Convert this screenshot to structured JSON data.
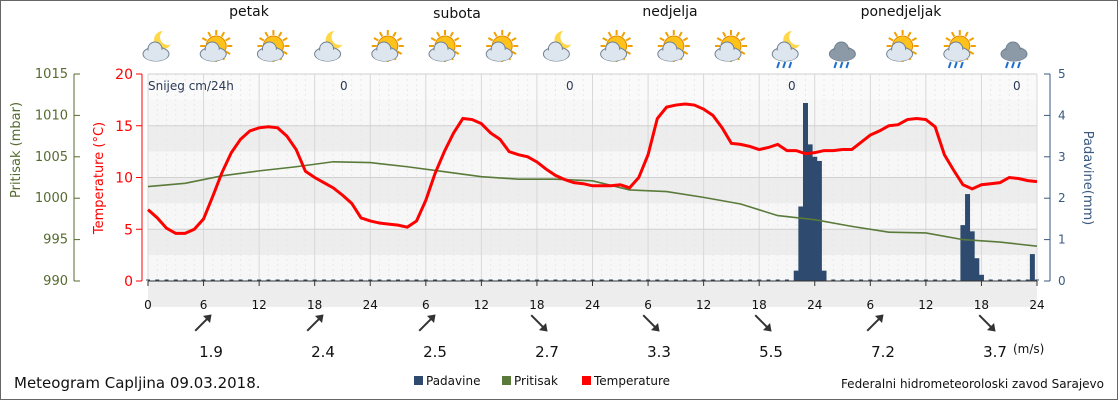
{
  "days": [
    "petak",
    "subota",
    "nedjelja",
    "ponedjeljak"
  ],
  "weather_icons": [
    "moon-cloud-icon",
    "sun-cloud-icon",
    "sun-cloud-icon",
    "moon-cloud-icon",
    "sun-cloud-icon",
    "sun-cloud-icon",
    "sun-cloud-icon",
    "moon-cloud-icon",
    "sun-cloud-icon",
    "sun-cloud-icon",
    "sun-cloud-icon",
    "moon-rain-icon",
    "cloud-rain-icon",
    "sun-cloud-icon",
    "sun-rain-icon",
    "cloud-rain-icon"
  ],
  "snow": {
    "label": "Snijeg cm/24h",
    "values": [
      "0",
      "0",
      "0",
      "0"
    ]
  },
  "wind": {
    "speeds": [
      "1.9",
      "2.4",
      "2.5",
      "2.7",
      "3.3",
      "5.5",
      "7.2",
      "3.7"
    ],
    "unit": "(m/s)",
    "directions_deg": [
      225,
      225,
      225,
      315,
      315,
      315,
      225,
      315
    ]
  },
  "footer": {
    "title": "Meteogram Capljina 09.03.2018.",
    "source": "Federalni hidrometeoroloski zavod Sarajevo",
    "legend": [
      "Padavine",
      "Pritisak",
      "Temperature"
    ]
  },
  "colors": {
    "temperature": "#ff0000",
    "pressure": "#5a7a3a",
    "precip": "#2e4a6e",
    "pressure_axis": "#556b2f",
    "precip_axis": "#3a5a80"
  },
  "chart_data": {
    "type": "line",
    "x_tick_labels": [
      "0",
      "6",
      "12",
      "18",
      "24",
      "6",
      "12",
      "18",
      "24",
      "6",
      "12",
      "18",
      "24",
      "6",
      "12",
      "18",
      "24"
    ],
    "x_range_hours": [
      0,
      96
    ],
    "axes": {
      "pressure": {
        "label": "Pritisak (mbar)",
        "range": [
          990,
          1015
        ],
        "ticks": [
          "1015",
          "1010",
          "1005",
          "1000",
          "995",
          "990"
        ]
      },
      "temperature": {
        "label": "Temperature (°C)",
        "range": [
          0,
          20
        ],
        "ticks": [
          "20",
          "15",
          "10",
          "5",
          "0"
        ]
      },
      "precip": {
        "label": "Padavine(mm)",
        "range": [
          0,
          5
        ],
        "ticks": [
          "5",
          "4",
          "3",
          "2",
          "1",
          "0"
        ]
      }
    },
    "series": [
      {
        "name": "Temperature",
        "x": [
          0,
          1,
          2,
          3,
          4,
          5,
          6,
          7,
          8,
          9,
          10,
          11,
          12,
          13,
          14,
          15,
          16,
          17,
          18,
          19,
          20,
          21,
          22,
          23,
          24,
          25,
          26,
          27,
          28,
          29,
          30,
          31,
          32,
          33,
          34,
          35,
          36,
          37,
          38,
          39,
          40,
          41,
          42,
          43,
          44,
          45,
          46,
          47,
          48,
          49,
          50,
          51,
          52,
          53,
          54,
          55,
          56,
          57,
          58,
          59,
          60,
          61,
          62,
          63,
          64,
          65,
          66,
          67,
          68,
          69,
          70,
          71,
          72,
          73,
          74,
          75,
          76,
          77,
          78,
          79,
          80,
          81,
          82,
          83,
          84,
          85,
          86,
          87,
          88,
          89,
          90,
          91,
          92,
          93,
          94,
          95,
          96
        ],
        "values": [
          6.9,
          6.1,
          5.1,
          4.6,
          4.6,
          5.0,
          6.0,
          8.2,
          10.5,
          12.4,
          13.7,
          14.5,
          14.8,
          14.9,
          14.8,
          14.0,
          12.7,
          10.6,
          10.0,
          9.5,
          9.0,
          8.3,
          7.5,
          6.1,
          5.8,
          5.6,
          5.5,
          5.4,
          5.2,
          5.8,
          7.8,
          10.4,
          12.5,
          14.3,
          15.7,
          15.6,
          15.2,
          14.3,
          13.7,
          12.5,
          12.2,
          12.0,
          11.5,
          10.8,
          10.2,
          9.8,
          9.5,
          9.4,
          9.2,
          9.2,
          9.2,
          9.3,
          9.0,
          10.0,
          12.2,
          15.7,
          16.8,
          17.0,
          17.1,
          17.0,
          16.6,
          16.0,
          14.8,
          13.3,
          13.2,
          13.0,
          12.7,
          12.9,
          13.2,
          12.6,
          12.6,
          12.3,
          12.4,
          12.6,
          12.6,
          12.7,
          12.7,
          13.4,
          14.1,
          14.5,
          15.0,
          15.1,
          15.6,
          15.7,
          15.6,
          14.9,
          12.2,
          10.7,
          9.3,
          8.9,
          9.3,
          9.4,
          9.5,
          10.0,
          9.9,
          9.7,
          9.6
        ]
      },
      {
        "name": "Pritisak",
        "x": [
          0,
          4,
          8,
          12,
          16,
          20,
          24,
          28,
          32,
          36,
          40,
          44,
          48,
          52,
          56,
          60,
          64,
          68,
          72,
          76,
          80,
          84,
          88,
          92,
          96
        ],
        "values": [
          1001.4,
          1001.8,
          1002.7,
          1003.3,
          1003.8,
          1004.4,
          1004.3,
          1003.8,
          1003.2,
          1002.6,
          1002.3,
          1002.3,
          1002.1,
          1001.0,
          1000.8,
          1000.1,
          999.3,
          997.9,
          997.4,
          996.6,
          995.9,
          995.8,
          995.0,
          994.7,
          994.2
        ]
      },
      {
        "name": "Padavine",
        "x": [
          70,
          70.5,
          71,
          71.5,
          72,
          72.5,
          73,
          73.5,
          87.5,
          88,
          88.5,
          89,
          89.5,
          90,
          90.5,
          95.5
        ],
        "values": [
          0.25,
          1.8,
          4.3,
          3.3,
          3.0,
          2.9,
          0.25,
          0,
          0,
          1.35,
          2.1,
          1.2,
          0.55,
          0.15,
          0,
          0.65
        ]
      }
    ]
  }
}
